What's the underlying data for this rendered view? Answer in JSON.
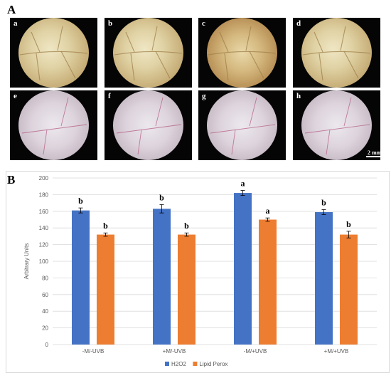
{
  "panel_a": {
    "label": "A",
    "images": [
      {
        "letter": "a",
        "tone": "yellow"
      },
      {
        "letter": "b",
        "tone": "yellow"
      },
      {
        "letter": "c",
        "tone": "yellow"
      },
      {
        "letter": "d",
        "tone": "yellow"
      },
      {
        "letter": "e",
        "tone": "pink"
      },
      {
        "letter": "f",
        "tone": "pink"
      },
      {
        "letter": "g",
        "tone": "pink"
      },
      {
        "letter": "h",
        "tone": "pink"
      }
    ],
    "scale_bar": "2 mm"
  },
  "panel_b": {
    "label": "B"
  },
  "chart_data": {
    "type": "bar",
    "categories": [
      "-M/-UVB",
      "+M/-UVB",
      "-M/+UVB",
      "+M/+UVB"
    ],
    "series": [
      {
        "name": "H2O2",
        "color": "#4472c4",
        "values": [
          161,
          163,
          182,
          159
        ],
        "errors": [
          3,
          5,
          3,
          3
        ],
        "letters": [
          "b",
          "b",
          "a",
          "b"
        ]
      },
      {
        "name": "Lipid Perox",
        "color": "#ed7d31",
        "values": [
          132,
          132,
          150,
          132
        ],
        "errors": [
          2,
          2,
          2,
          4
        ],
        "letters": [
          "b",
          "b",
          "a",
          "b"
        ]
      }
    ],
    "ylabel": "Arbitrary Units",
    "ylim": [
      0,
      200
    ],
    "yticks": [
      0,
      20,
      40,
      60,
      80,
      100,
      120,
      140,
      160,
      180,
      200
    ],
    "grid": true,
    "legend_position": "bottom"
  }
}
